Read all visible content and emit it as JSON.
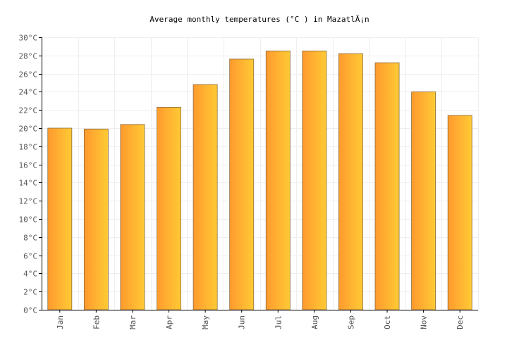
{
  "chart_data": {
    "type": "bar",
    "title": "Average monthly temperatures (°C ) in MazatlÃ¡n",
    "xlabel": "",
    "ylabel": "",
    "categories": [
      "Jan",
      "Feb",
      "Mar",
      "Apr",
      "May",
      "Jun",
      "Jul",
      "Aug",
      "Sep",
      "Oct",
      "Nov",
      "Dec"
    ],
    "values": [
      20.0,
      19.9,
      20.4,
      22.3,
      24.8,
      27.6,
      28.5,
      28.5,
      28.2,
      27.2,
      24.0,
      21.4
    ],
    "ylim": [
      0,
      30
    ],
    "ytick_step": 2,
    "ytick_suffix": "°C",
    "grid": true,
    "bar_gradient": [
      "#ff9a2e",
      "#ffca35"
    ]
  }
}
